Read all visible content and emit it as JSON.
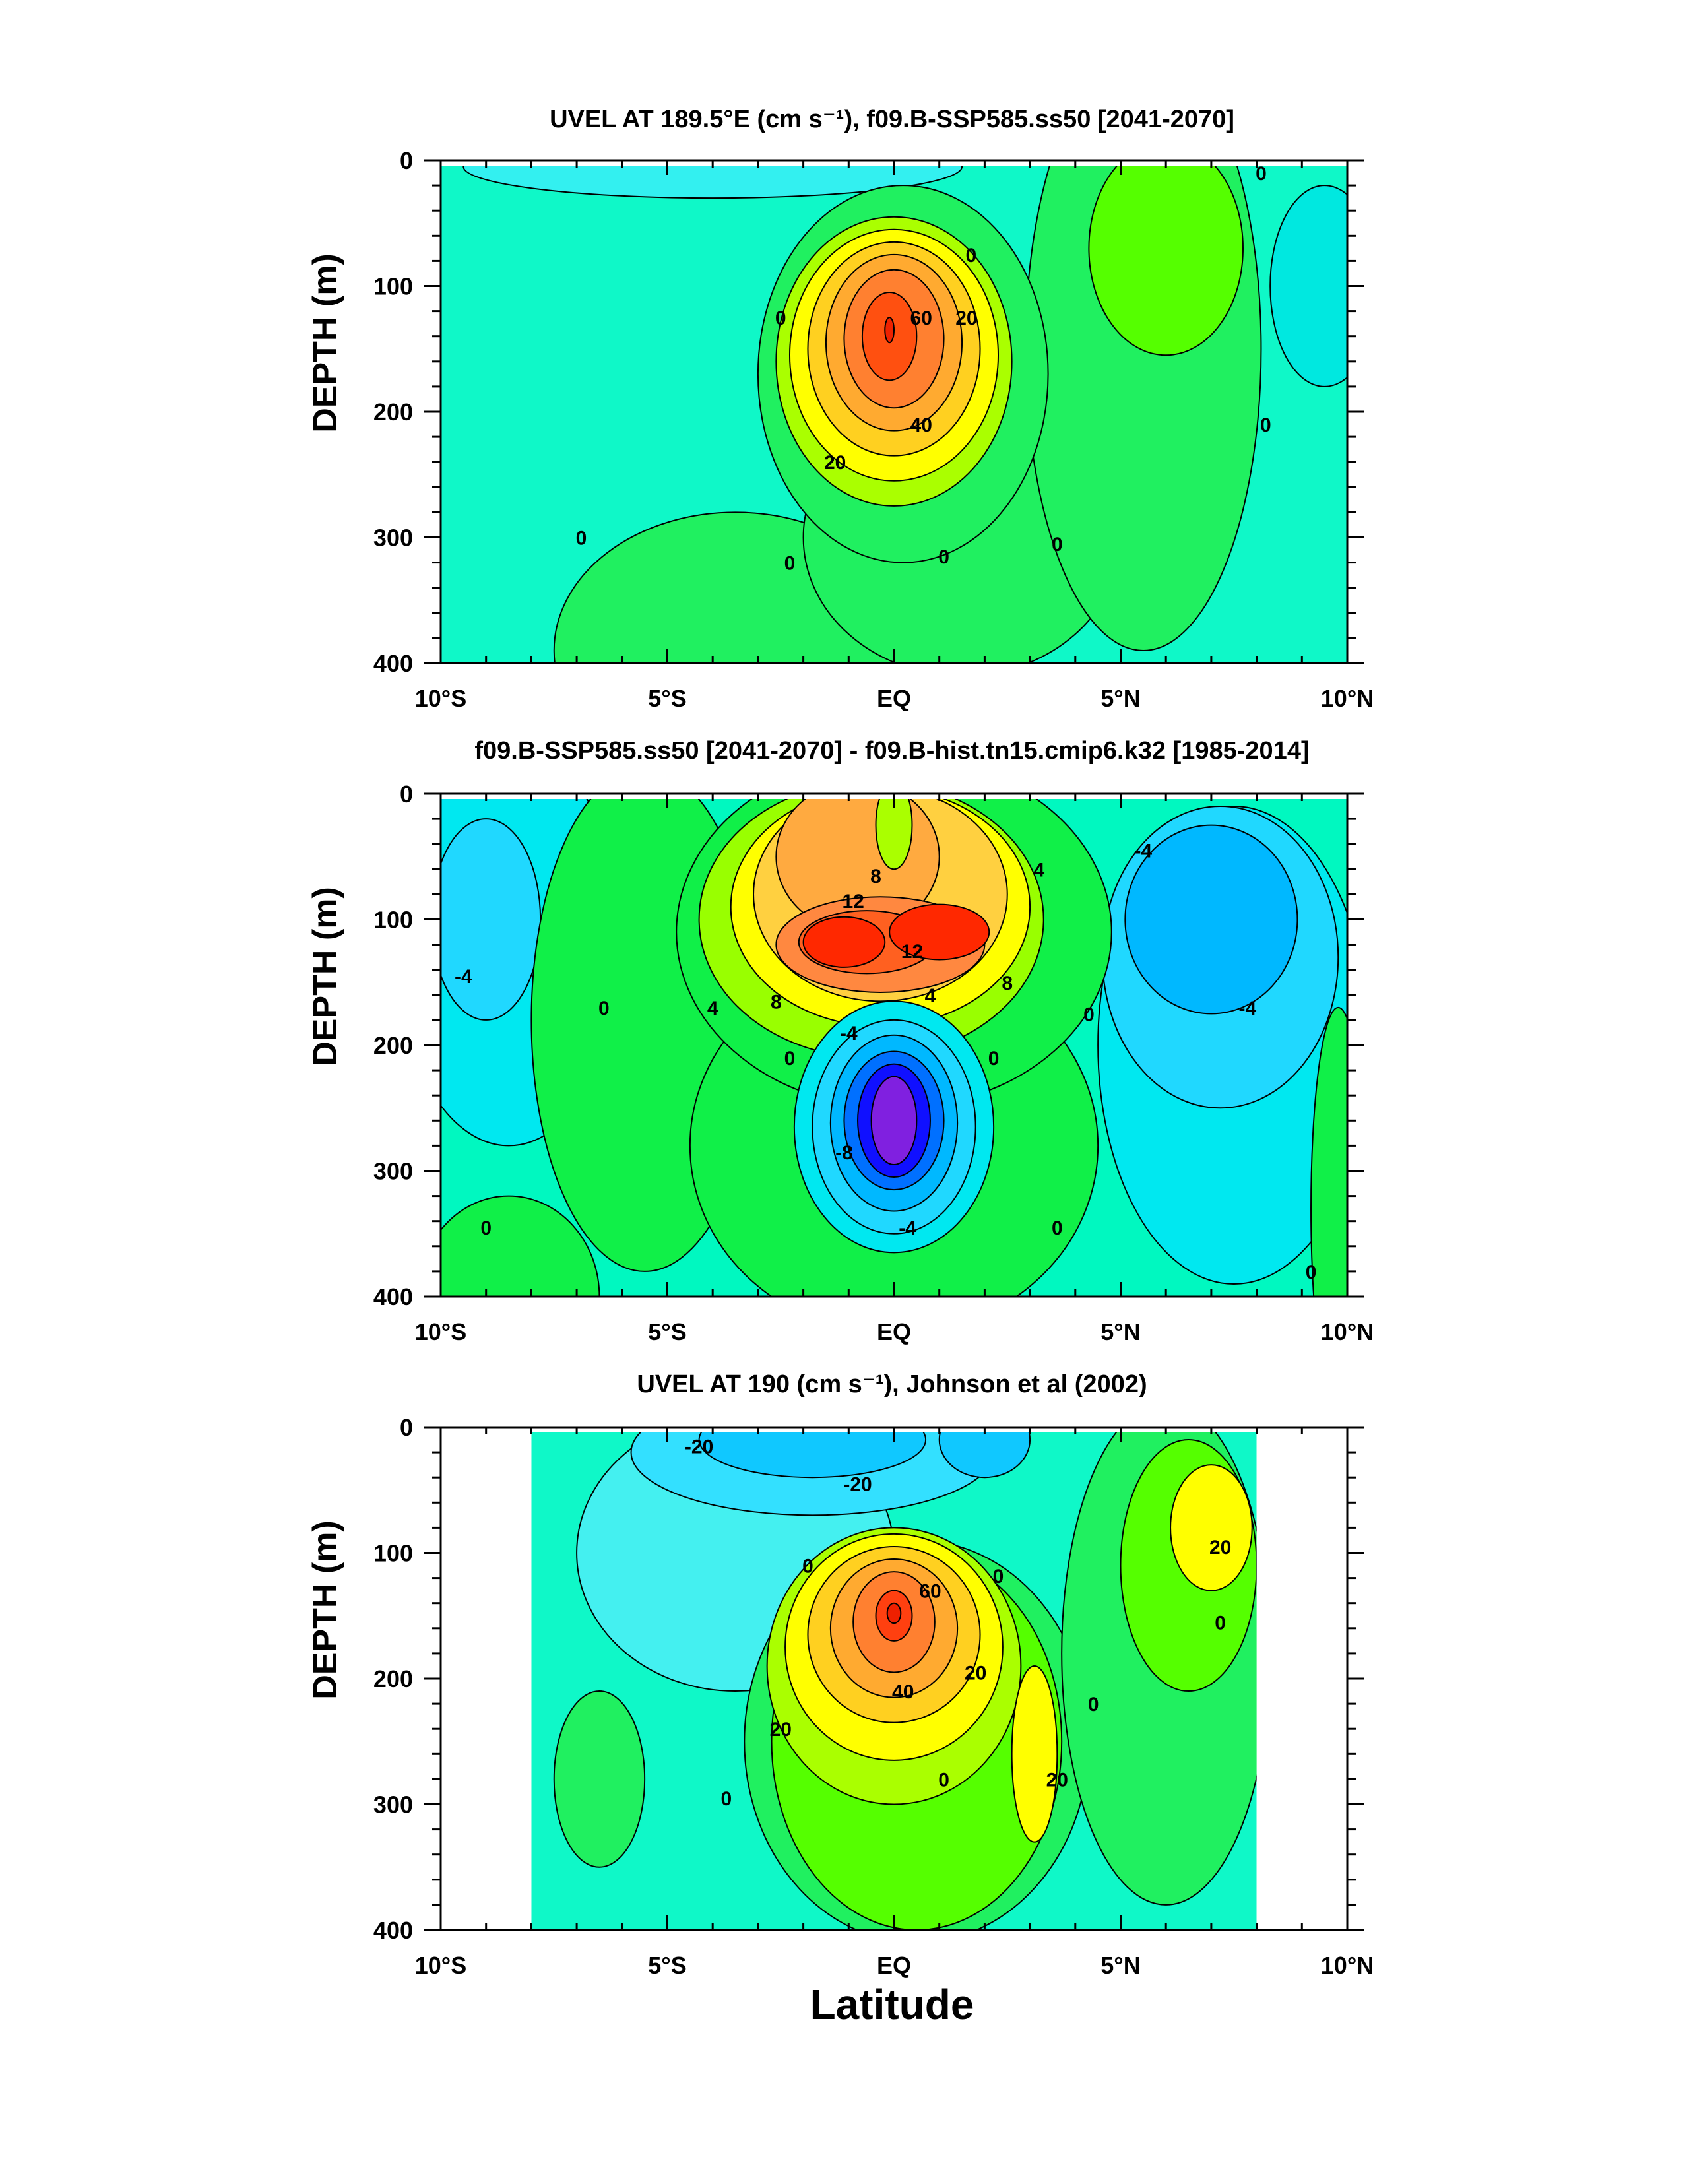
{
  "figure": {
    "xlabel": "Latitude",
    "colors": {
      "background": "#ffffff",
      "axis": "#000000",
      "contour_line": "#000000"
    }
  },
  "chart_data": [
    {
      "type": "heatmap",
      "title": "UVEL AT 189.5°E (cm s⁻¹), f09.B-SSP585.ss50 [2041-2070]",
      "xlabel": "",
      "ylabel": "DEPTH (m)",
      "xlim": [
        -10,
        10
      ],
      "ylim": [
        400,
        0
      ],
      "xticks": [
        -10,
        -5,
        0,
        5,
        10
      ],
      "xtick_labels": [
        "10°S",
        "5°S",
        "EQ",
        "5°N",
        "10°N"
      ],
      "yticks": [
        0,
        100,
        200,
        300,
        400
      ],
      "ytick_labels": [
        "0",
        "100",
        "200",
        "300",
        "400"
      ],
      "background_color": "#0ff8c8",
      "contour_levels_description": "interval 5 cm/s",
      "regions": [
        {
          "value": -10,
          "lat_center": -4.0,
          "depth_center": 5,
          "lat_radius": 5.5,
          "depth_radius": 25,
          "color": "#33f0f0"
        },
        {
          "value": -10,
          "lat_center": 9.5,
          "depth_center": 100,
          "lat_radius": 1.2,
          "depth_radius": 80,
          "color": "#00e8e0"
        },
        {
          "value": 5,
          "lat_center": -3.5,
          "depth_center": 390,
          "lat_radius": 4.0,
          "depth_radius": 110,
          "color": "#20f060"
        },
        {
          "value": 5,
          "lat_center": 1.5,
          "depth_center": 300,
          "lat_radius": 3.5,
          "depth_radius": 110,
          "color": "#20f060"
        },
        {
          "value": 5,
          "lat_center": 5.5,
          "depth_center": 150,
          "lat_radius": 2.6,
          "depth_radius": 240,
          "color": "#20f060"
        },
        {
          "value": 5,
          "lat_center": 0.2,
          "depth_center": 170,
          "lat_radius": 3.2,
          "depth_radius": 150,
          "color": "#20f060"
        },
        {
          "value": 10,
          "lat_center": 6.0,
          "depth_center": 70,
          "lat_radius": 1.7,
          "depth_radius": 85,
          "color": "#55ff00"
        },
        {
          "value": 15,
          "lat_center": 0.0,
          "depth_center": 160,
          "lat_radius": 2.6,
          "depth_radius": 115,
          "color": "#aaff00"
        },
        {
          "value": 25,
          "lat_center": 0.0,
          "depth_center": 155,
          "lat_radius": 2.3,
          "depth_radius": 100,
          "color": "#ffff00"
        },
        {
          "value": 35,
          "lat_center": 0.0,
          "depth_center": 150,
          "lat_radius": 1.9,
          "depth_radius": 85,
          "color": "#ffd020"
        },
        {
          "value": 45,
          "lat_center": 0.0,
          "depth_center": 145,
          "lat_radius": 1.5,
          "depth_radius": 70,
          "color": "#ffaa30"
        },
        {
          "value": 55,
          "lat_center": 0.0,
          "depth_center": 142,
          "lat_radius": 1.1,
          "depth_radius": 55,
          "color": "#ff8030"
        },
        {
          "value": 65,
          "lat_center": -0.1,
          "depth_center": 140,
          "lat_radius": 0.6,
          "depth_radius": 35,
          "color": "#ff5010"
        },
        {
          "value": 70,
          "lat_center": -0.1,
          "depth_center": 135,
          "lat_radius": 0.1,
          "depth_radius": 10,
          "color": "#ee2200"
        }
      ],
      "contour_labels": [
        {
          "text": "0",
          "lat": -6.9,
          "depth": 300
        },
        {
          "text": "0",
          "lat": -2.3,
          "depth": 320
        },
        {
          "text": "0",
          "lat": -2.5,
          "depth": 125
        },
        {
          "text": "0",
          "lat": 1.1,
          "depth": 315
        },
        {
          "text": "0",
          "lat": 3.6,
          "depth": 305
        },
        {
          "text": "0",
          "lat": 1.7,
          "depth": 75
        },
        {
          "text": "0",
          "lat": 8.1,
          "depth": 10
        },
        {
          "text": "0",
          "lat": 8.2,
          "depth": 210
        },
        {
          "text": "20",
          "lat": -1.3,
          "depth": 240
        },
        {
          "text": "20",
          "lat": 1.6,
          "depth": 125
        },
        {
          "text": "40",
          "lat": 0.6,
          "depth": 210
        },
        {
          "text": "60",
          "lat": 0.6,
          "depth": 125
        }
      ]
    },
    {
      "type": "heatmap",
      "title": "f09.B-SSP585.ss50 [2041-2070] - f09.B-hist.tn15.cmip6.k32 [1985-2014]",
      "xlabel": "",
      "ylabel": "DEPTH (m)",
      "xlim": [
        -10,
        10
      ],
      "ylim": [
        400,
        0
      ],
      "xticks": [
        -10,
        -5,
        0,
        5,
        10
      ],
      "xtick_labels": [
        "10°S",
        "5°S",
        "EQ",
        "5°N",
        "10°N"
      ],
      "yticks": [
        0,
        100,
        200,
        300,
        400
      ],
      "ytick_labels": [
        "0",
        "100",
        "200",
        "300",
        "400"
      ],
      "background_color": "#00f8c0",
      "contour_levels_description": "interval 2 cm/s",
      "regions": [
        {
          "value": -2,
          "lat_center": -8.5,
          "depth_center": 120,
          "lat_radius": 2.5,
          "depth_radius": 160,
          "color": "#00e8f0"
        },
        {
          "value": -4,
          "lat_center": -9.0,
          "depth_center": 100,
          "lat_radius": 1.2,
          "depth_radius": 80,
          "color": "#20d8ff"
        },
        {
          "value": -2,
          "lat_center": 7.5,
          "depth_center": 200,
          "lat_radius": 3.0,
          "depth_radius": 190,
          "color": "#00e8f0"
        },
        {
          "value": -4,
          "lat_center": 7.2,
          "depth_center": 130,
          "lat_radius": 2.6,
          "depth_radius": 120,
          "color": "#20d8ff"
        },
        {
          "value": -6,
          "lat_center": 7.0,
          "depth_center": 100,
          "lat_radius": 1.9,
          "depth_radius": 75,
          "color": "#00b8ff"
        },
        {
          "value": 2,
          "lat_center": -5.5,
          "depth_center": 180,
          "lat_radius": 2.5,
          "depth_radius": 200,
          "color": "#10f048"
        },
        {
          "value": 2,
          "lat_center": 0.0,
          "depth_center": 280,
          "lat_radius": 4.5,
          "depth_radius": 150,
          "color": "#10f048"
        },
        {
          "value": 2,
          "lat_center": -8.5,
          "depth_center": 400,
          "lat_radius": 2.0,
          "depth_radius": 80,
          "color": "#10f048"
        },
        {
          "value": 2,
          "lat_center": 9.8,
          "depth_center": 330,
          "lat_radius": 0.6,
          "depth_radius": 160,
          "color": "#10f048"
        },
        {
          "value": 2,
          "lat_center": 0.0,
          "depth_center": 110,
          "lat_radius": 4.8,
          "depth_radius": 140,
          "color": "#10f048"
        },
        {
          "value": 3,
          "lat_center": -0.5,
          "depth_center": 100,
          "lat_radius": 3.8,
          "depth_radius": 110,
          "color": "#99ff00"
        },
        {
          "value": 4,
          "lat_center": -0.3,
          "depth_center": 90,
          "lat_radius": 3.3,
          "depth_radius": 95,
          "color": "#ffff00"
        },
        {
          "value": 6,
          "lat_center": -0.3,
          "depth_center": 80,
          "lat_radius": 2.8,
          "depth_radius": 85,
          "color": "#ffd040"
        },
        {
          "value": 8,
          "lat_center": -0.8,
          "depth_center": 50,
          "lat_radius": 1.8,
          "depth_radius": 60,
          "color": "#ffaa40"
        },
        {
          "value": 3,
          "lat_center": 0.0,
          "depth_center": 25,
          "lat_radius": 0.4,
          "depth_radius": 35,
          "color": "#aaff00"
        },
        {
          "value": 10,
          "lat_center": -0.3,
          "depth_center": 120,
          "lat_radius": 2.3,
          "depth_radius": 38,
          "color": "#ff8840"
        },
        {
          "value": 12,
          "lat_center": -0.6,
          "depth_center": 118,
          "lat_radius": 1.5,
          "depth_radius": 25,
          "color": "#ff6020"
        },
        {
          "value": 14,
          "lat_center": -1.1,
          "depth_center": 118,
          "lat_radius": 0.9,
          "depth_radius": 20,
          "color": "#ff2800"
        },
        {
          "value": 14,
          "lat_center": 1.0,
          "depth_center": 110,
          "lat_radius": 1.1,
          "depth_radius": 22,
          "color": "#ff2800"
        },
        {
          "value": -2,
          "lat_center": 0.0,
          "depth_center": 265,
          "lat_radius": 2.2,
          "depth_radius": 100,
          "color": "#00e8f0"
        },
        {
          "value": -4,
          "lat_center": 0.0,
          "depth_center": 265,
          "lat_radius": 1.8,
          "depth_radius": 85,
          "color": "#20d8ff"
        },
        {
          "value": -6,
          "lat_center": 0.0,
          "depth_center": 262,
          "lat_radius": 1.4,
          "depth_radius": 70,
          "color": "#00b8ff"
        },
        {
          "value": -8,
          "lat_center": 0.0,
          "depth_center": 260,
          "lat_radius": 1.1,
          "depth_radius": 55,
          "color": "#0070ff"
        },
        {
          "value": -10,
          "lat_center": 0.0,
          "depth_center": 260,
          "lat_radius": 0.8,
          "depth_radius": 45,
          "color": "#1010ff"
        },
        {
          "value": -12,
          "lat_center": 0.0,
          "depth_center": 260,
          "lat_radius": 0.5,
          "depth_radius": 35,
          "color": "#8020e0"
        }
      ],
      "contour_labels": [
        {
          "text": "-4",
          "lat": -9.5,
          "depth": 145
        },
        {
          "text": "0",
          "lat": -6.4,
          "depth": 170
        },
        {
          "text": "4",
          "lat": -4.0,
          "depth": 170
        },
        {
          "text": "8",
          "lat": -2.6,
          "depth": 165
        },
        {
          "text": "8",
          "lat": -0.4,
          "depth": 65
        },
        {
          "text": "12",
          "lat": -0.9,
          "depth": 85
        },
        {
          "text": "12",
          "lat": 0.4,
          "depth": 125
        },
        {
          "text": "4",
          "lat": 0.8,
          "depth": 160
        },
        {
          "text": "8",
          "lat": 2.5,
          "depth": 150
        },
        {
          "text": "4",
          "lat": 3.2,
          "depth": 60
        },
        {
          "text": "-4",
          "lat": -1.0,
          "depth": 190
        },
        {
          "text": "0",
          "lat": -2.3,
          "depth": 210
        },
        {
          "text": "0",
          "lat": 2.2,
          "depth": 210
        },
        {
          "text": "-8",
          "lat": -1.1,
          "depth": 285
        },
        {
          "text": "-4",
          "lat": 0.3,
          "depth": 345
        },
        {
          "text": "0",
          "lat": 4.3,
          "depth": 175
        },
        {
          "text": "-4",
          "lat": 5.5,
          "depth": 45
        },
        {
          "text": "-4",
          "lat": 7.8,
          "depth": 170
        },
        {
          "text": "0",
          "lat": -9.0,
          "depth": 345
        },
        {
          "text": "0",
          "lat": 3.6,
          "depth": 345
        },
        {
          "text": "0",
          "lat": 9.2,
          "depth": 380
        }
      ]
    },
    {
      "type": "heatmap",
      "title": "UVEL AT 190 (cm s⁻¹), Johnson et al (2002)",
      "xlabel": "Latitude",
      "ylabel": "DEPTH (m)",
      "xlim": [
        -10,
        10
      ],
      "ylim": [
        400,
        0
      ],
      "xticks": [
        -10,
        -5,
        0,
        5,
        10
      ],
      "xtick_labels": [
        "10°S",
        "5°S",
        "EQ",
        "5°N",
        "10°N"
      ],
      "yticks": [
        0,
        100,
        200,
        300,
        400
      ],
      "ytick_labels": [
        "0",
        "100",
        "200",
        "300",
        "400"
      ],
      "data_extent_lat": [
        -8,
        8
      ],
      "background_color": "#0ff8c8",
      "contour_levels_description": "interval 5 cm/s",
      "regions": [
        {
          "value": -5,
          "lat_center": -3.5,
          "depth_center": 100,
          "lat_radius": 3.5,
          "depth_radius": 110,
          "color": "#44f0f0"
        },
        {
          "value": -10,
          "lat_center": -1.8,
          "depth_center": 20,
          "lat_radius": 4.0,
          "depth_radius": 50,
          "color": "#33e0ff"
        },
        {
          "value": -15,
          "lat_center": -1.8,
          "depth_center": 10,
          "lat_radius": 2.5,
          "depth_radius": 30,
          "color": "#10c8ff"
        },
        {
          "value": -15,
          "lat_center": 2.0,
          "depth_center": 10,
          "lat_radius": 1.0,
          "depth_radius": 30,
          "color": "#10c8ff"
        },
        {
          "value": 5,
          "lat_center": -6.5,
          "depth_center": 280,
          "lat_radius": 1.0,
          "depth_radius": 70,
          "color": "#20f060"
        },
        {
          "value": 5,
          "lat_center": 0.5,
          "depth_center": 250,
          "lat_radius": 3.8,
          "depth_radius": 160,
          "color": "#20f060"
        },
        {
          "value": 5,
          "lat_center": 6.0,
          "depth_center": 180,
          "lat_radius": 2.3,
          "depth_radius": 200,
          "color": "#20f060"
        },
        {
          "value": 10,
          "lat_center": 0.5,
          "depth_center": 250,
          "lat_radius": 3.2,
          "depth_radius": 150,
          "color": "#55ff00"
        },
        {
          "value": 10,
          "lat_center": 6.5,
          "depth_center": 110,
          "lat_radius": 1.5,
          "depth_radius": 100,
          "color": "#55ff00"
        },
        {
          "value": 15,
          "lat_center": 0.0,
          "depth_center": 190,
          "lat_radius": 2.8,
          "depth_radius": 110,
          "color": "#aaff00"
        },
        {
          "value": 25,
          "lat_center": 0.0,
          "depth_center": 175,
          "lat_radius": 2.4,
          "depth_radius": 90,
          "color": "#ffff00"
        },
        {
          "value": 25,
          "lat_center": 3.1,
          "depth_center": 260,
          "lat_radius": 0.5,
          "depth_radius": 70,
          "color": "#ffff00"
        },
        {
          "value": 25,
          "lat_center": 7.0,
          "depth_center": 80,
          "lat_radius": 0.9,
          "depth_radius": 50,
          "color": "#ffff00"
        },
        {
          "value": 35,
          "lat_center": 0.0,
          "depth_center": 165,
          "lat_radius": 1.9,
          "depth_radius": 70,
          "color": "#ffd020"
        },
        {
          "value": 45,
          "lat_center": 0.0,
          "depth_center": 160,
          "lat_radius": 1.4,
          "depth_radius": 55,
          "color": "#ffaa30"
        },
        {
          "value": 55,
          "lat_center": 0.0,
          "depth_center": 155,
          "lat_radius": 0.9,
          "depth_radius": 40,
          "color": "#ff8030"
        },
        {
          "value": 65,
          "lat_center": 0.0,
          "depth_center": 150,
          "lat_radius": 0.4,
          "depth_radius": 20,
          "color": "#ff4010"
        },
        {
          "value": 70,
          "lat_center": 0.0,
          "depth_center": 148,
          "lat_radius": 0.15,
          "depth_radius": 8,
          "color": "#ee2000"
        }
      ],
      "contour_labels": [
        {
          "text": "-20",
          "lat": -4.3,
          "depth": 15
        },
        {
          "text": "-20",
          "lat": -0.8,
          "depth": 45
        },
        {
          "text": "0",
          "lat": -1.9,
          "depth": 110
        },
        {
          "text": "0",
          "lat": 2.3,
          "depth": 118
        },
        {
          "text": "60",
          "lat": 0.8,
          "depth": 130
        },
        {
          "text": "40",
          "lat": 0.2,
          "depth": 210
        },
        {
          "text": "20",
          "lat": 1.8,
          "depth": 195
        },
        {
          "text": "20",
          "lat": -2.5,
          "depth": 240
        },
        {
          "text": "0",
          "lat": -3.7,
          "depth": 295
        },
        {
          "text": "0",
          "lat": 1.1,
          "depth": 280
        },
        {
          "text": "20",
          "lat": 3.6,
          "depth": 280
        },
        {
          "text": "0",
          "lat": 4.4,
          "depth": 220
        },
        {
          "text": "20",
          "lat": 7.2,
          "depth": 95
        },
        {
          "text": "0",
          "lat": 7.2,
          "depth": 155
        }
      ]
    }
  ]
}
